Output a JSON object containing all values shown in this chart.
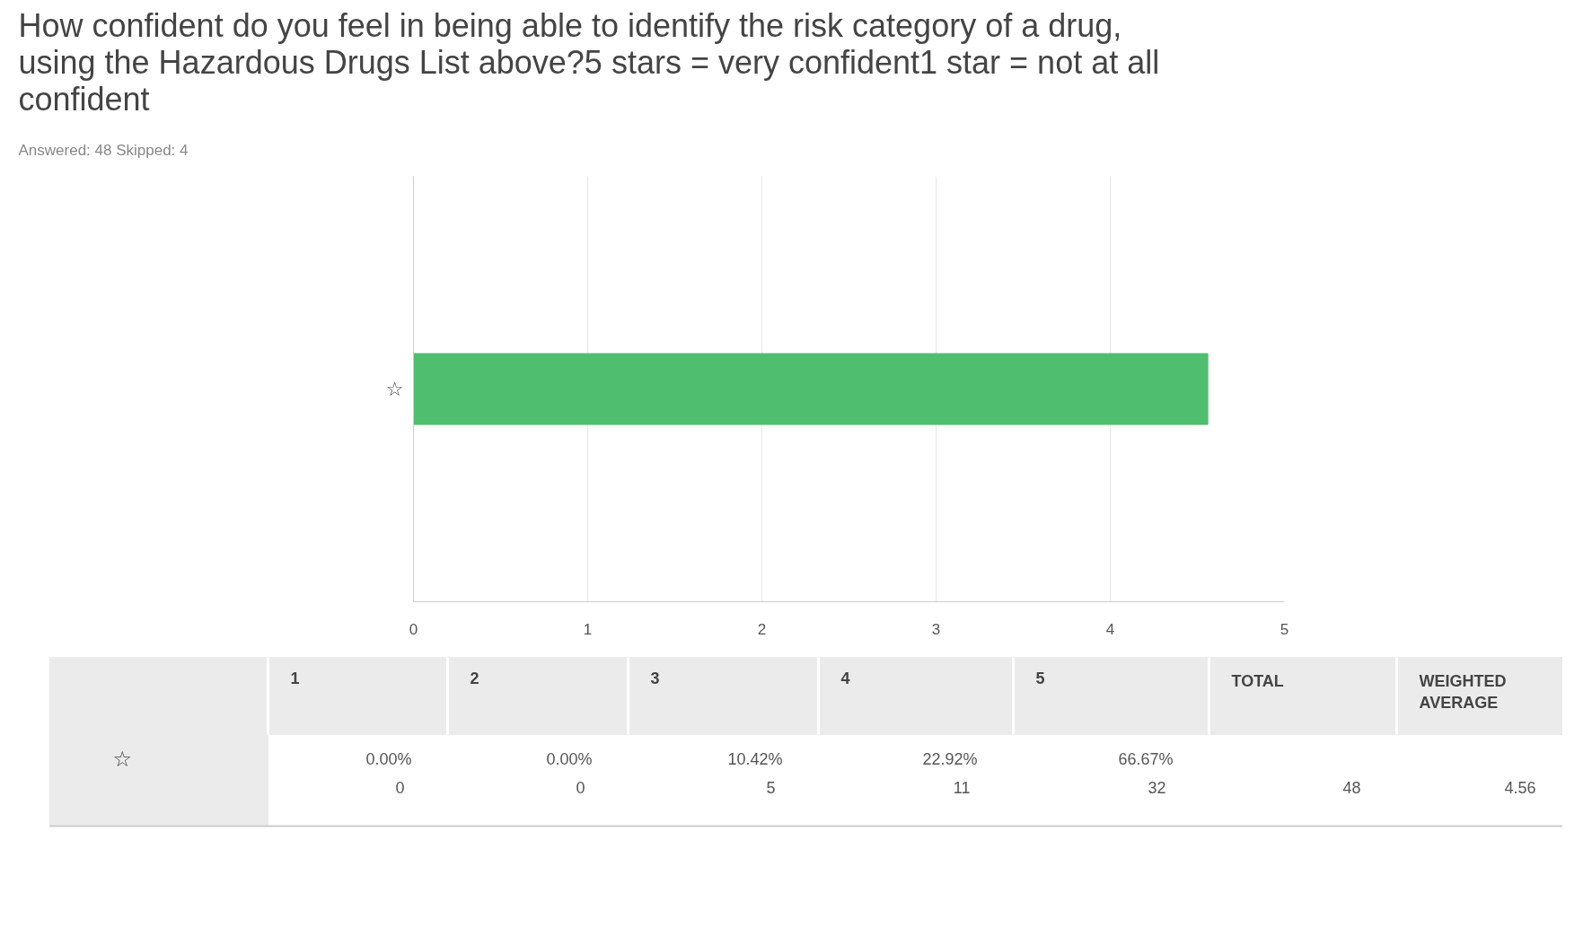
{
  "chart_data": {
    "type": "bar",
    "orientation": "horizontal",
    "title": "How confident do you feel in being able to identify the risk category of a drug, using the Hazardous Drugs List above?5 stars = very confident1 star = not at all confident",
    "categories": [
      "☆"
    ],
    "values": [
      4.56
    ],
    "color": "#4fbf6f",
    "xlim": [
      0,
      5
    ],
    "xticks": [
      0,
      1,
      2,
      3,
      4,
      5
    ],
    "grid": "x",
    "annotations": [
      "Answered: 48",
      "Skipped: 4",
      "1",
      "2",
      "3",
      "4",
      "5",
      "TOTAL",
      "WEIGHTED AVERAGE",
      "0.00%",
      "0.00%",
      "10.42%",
      "22.92%",
      "66.67%",
      "0",
      "0",
      "5",
      "11",
      "32",
      "48",
      "4.56"
    ]
  }
}
